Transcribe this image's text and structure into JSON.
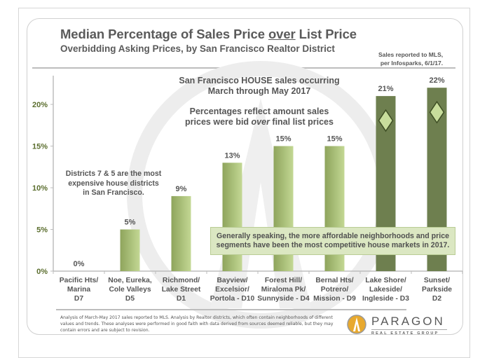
{
  "chart_data": {
    "type": "bar",
    "title": "Median Percentage of Sales Price over List Price",
    "title_parts": {
      "before": "Median Percentage of Sales Price ",
      "underlined": "over",
      "after": " List Price"
    },
    "subtitle": "Overbidding Asking Prices, by San Francisco Realtor District",
    "source_note": [
      "Sales reported to MLS,",
      "per Infosparks, 6/1/17."
    ],
    "xlabel": "",
    "ylabel": "",
    "ylim": [
      0,
      22
    ],
    "yticks": [
      0,
      5,
      10,
      15,
      20
    ],
    "ytick_labels": [
      "0%",
      "5%",
      "10%",
      "15%",
      "20%"
    ],
    "categories": [
      [
        "Pacific Hts/",
        "Marina",
        "D7"
      ],
      [
        "Noe, Eureka,",
        "Cole Valleys",
        "D5"
      ],
      [
        "Richmond/",
        "Lake Street",
        "D1"
      ],
      [
        "Bayview/",
        "Excelsior/",
        "Portola - D10"
      ],
      [
        "Forest Hill/",
        "Miraloma Pk/",
        "Sunnyside - D4"
      ],
      [
        "Bernal Hts/",
        "Potrero/",
        "Mission - D9"
      ],
      [
        "Lake Shore/",
        "Lakeside/",
        "Ingleside - D3"
      ],
      [
        "Sunset/",
        "Parkside",
        "D2"
      ]
    ],
    "values": [
      0,
      5,
      9,
      13,
      15,
      15,
      21,
      22
    ],
    "data_labels": [
      "0%",
      "5%",
      "9%",
      "13%",
      "15%",
      "15%",
      "21%",
      "22%"
    ],
    "highlighted": [
      false,
      false,
      false,
      false,
      false,
      false,
      true,
      true
    ],
    "grid": false,
    "legend": "none",
    "annotations": {
      "top_note": [
        "San Francisco HOUSE sales occurring",
        "March through May 2017"
      ],
      "pct_note_parts": {
        "line1": "Percentages reflect amount sales",
        "line2_before": "prices were bid ",
        "line2_italic": "over",
        "line2_after": " final list prices"
      },
      "expensive_note": [
        "Districts 7 & 5 are the most",
        "expensive house districts",
        "in San Francisco."
      ],
      "callout": [
        "Generally speaking, the more affordable neighborhoods and price",
        "segments have been the most competitive house markets in 2017."
      ]
    },
    "colors": {
      "bar_gradient_dark": "#8ea45c",
      "bar_gradient_light": "#c3d894",
      "highlight_bar": "#6e7f4f",
      "diamond_fill": "#c8dd9c",
      "diamond_stroke": "#3f4f25",
      "ytick_color": "#5b6e2e",
      "axis": "#bdbdbd"
    }
  },
  "footnote": "Analysis of March-May 2017 sales reported to MLS. Analysis by Realtor districts, which often contain neighborhoods of different values and trends. These analyses were performed in good faith with data derived from sources deemed reliable, but they may contain errors and are subject to revision.",
  "logo": {
    "name": "PARAGON",
    "tagline": "REAL ESTATE GROUP",
    "icon": "paragon-logo-icon",
    "color": "#e8a92e"
  }
}
